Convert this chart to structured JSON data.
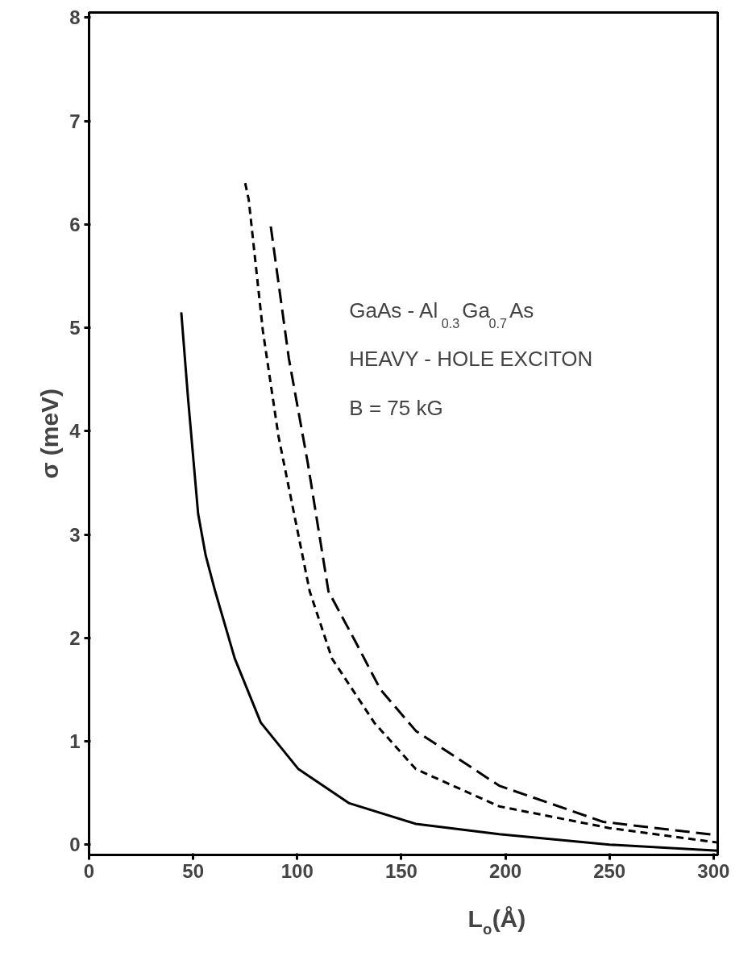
{
  "chart_data": {
    "type": "line",
    "xlabel": "L$_{o}$(Å)",
    "ylabel": "σ (meV)",
    "xlim": [
      0,
      302
    ],
    "ylim": [
      -0.1,
      8.05
    ],
    "xticks": [
      0,
      50,
      100,
      150,
      200,
      250,
      300
    ],
    "yticks": [
      0,
      1,
      2,
      3,
      4,
      5,
      6,
      7,
      8
    ],
    "grid": false,
    "annotations": [
      "GaAs - Al$_{0.3}$Ga$_{0.7}$As",
      "HEAVY - HOLE EXCITON",
      "B = 75 kG"
    ],
    "series": [
      {
        "color": "#000000",
        "line_style": "solid",
        "x": [
          44.3,
          47.5,
          52.4,
          56,
          60.6,
          70,
          82.5,
          100.6,
          125,
          157,
          197,
          250,
          302
        ],
        "values": [
          5.15,
          4.33,
          3.2,
          2.8,
          2.45,
          1.8,
          1.18,
          0.73,
          0.4,
          0.2,
          0.1,
          0.0,
          -0.06
        ]
      },
      {
        "color": "#000000",
        "line_style": "dotted",
        "x": [
          75,
          76.7,
          83.5,
          91,
          98.5,
          106,
          116.7,
          137,
          157,
          197,
          250,
          302
        ],
        "values": [
          6.4,
          6.24,
          4.97,
          3.95,
          3.2,
          2.45,
          1.8,
          1.18,
          0.73,
          0.37,
          0.16,
          0.02
        ]
      },
      {
        "color": "#000000",
        "line_style": "dashed",
        "x": [
          87.3,
          96,
          105,
          115,
          127,
          140,
          157,
          197,
          247,
          302
        ],
        "values": [
          5.98,
          4.7,
          3.7,
          2.45,
          2.0,
          1.5,
          1.1,
          0.57,
          0.22,
          0.09
        ]
      }
    ]
  }
}
